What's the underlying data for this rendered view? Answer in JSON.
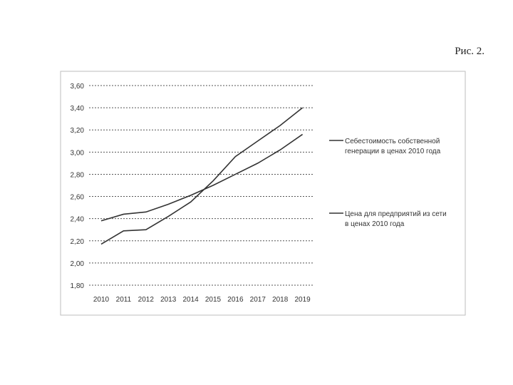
{
  "figure_label": "Рис. 2.",
  "chart_data": {
    "type": "line",
    "categories": [
      "2010",
      "2011",
      "2012",
      "2013",
      "2014",
      "2015",
      "2016",
      "2017",
      "2018",
      "2019"
    ],
    "ylim": [
      1.8,
      3.6
    ],
    "yticks": [
      "3,60",
      "3,40",
      "3,20",
      "3,00",
      "2,80",
      "2,60",
      "2,40",
      "2,20",
      "2,00",
      "1,80"
    ],
    "ytick_values": [
      3.6,
      3.4,
      3.2,
      3.0,
      2.8,
      2.6,
      2.4,
      2.2,
      2.0,
      1.8
    ],
    "grid": true,
    "legend_position": "right",
    "series": [
      {
        "name": "Себестоимость собственной генерации в ценах 2010 года",
        "legend_lines": [
          "Себестоимость собственной",
          "генерации в ценах 2010 года"
        ],
        "values": [
          2.17,
          2.29,
          2.3,
          2.42,
          2.55,
          2.74,
          2.96,
          3.1,
          3.24,
          3.4
        ]
      },
      {
        "name": "Цена для предприятий из сети в ценах 2010 года",
        "legend_lines": [
          "Цена для предприятий из сети",
          "в ценах 2010 года"
        ],
        "values": [
          2.38,
          2.44,
          2.46,
          2.53,
          2.61,
          2.7,
          2.8,
          2.9,
          3.02,
          3.16
        ]
      }
    ]
  }
}
